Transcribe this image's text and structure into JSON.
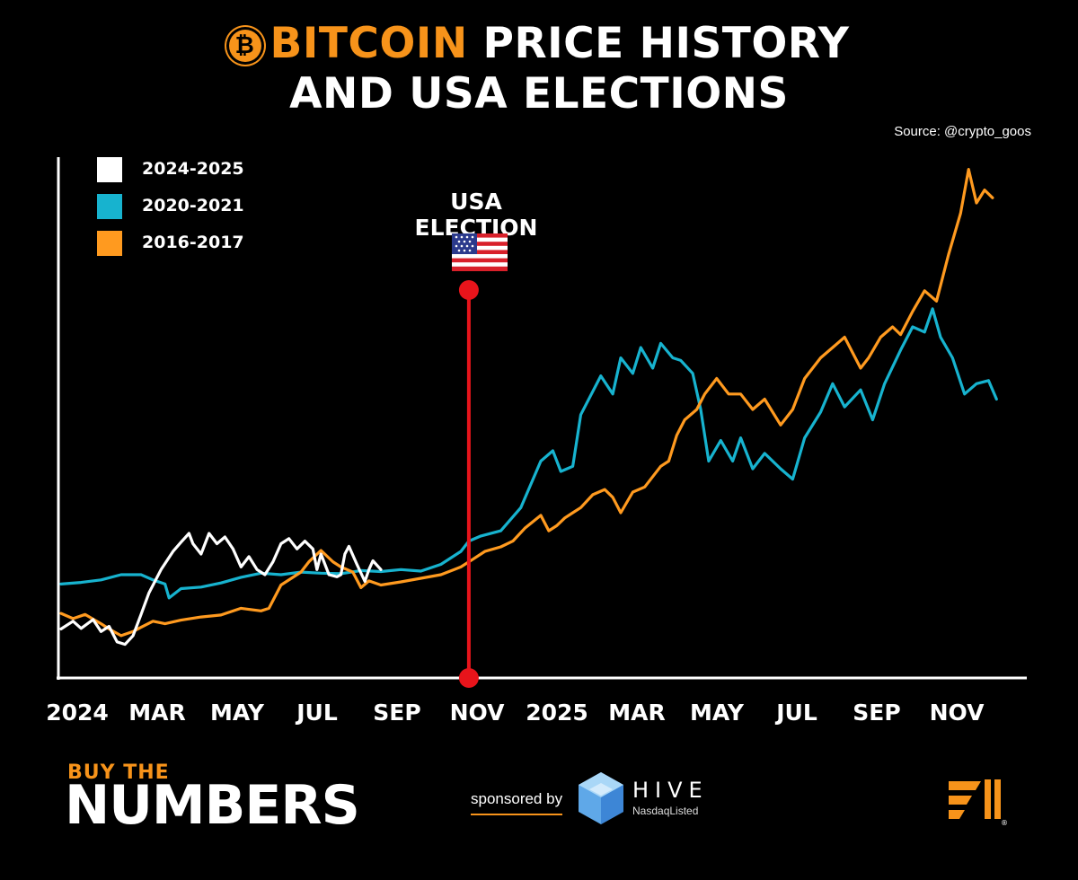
{
  "header": {
    "title_accent": "BITCOIN",
    "title_rest": " PRICE HISTORY",
    "title_line2": "AND USA ELECTIONS",
    "source": "Source: @crypto_goos"
  },
  "colors": {
    "background": "#000000",
    "accent": "#F7931A",
    "series_2024": "#FFFFFF",
    "series_2020": "#17B3CF",
    "series_2016": "#FF9A1F",
    "election_line": "#E8141B"
  },
  "annotation": {
    "label": "USA ELECTION",
    "icon": "us-flag-icon"
  },
  "chart_data": {
    "type": "line",
    "title": "BITCOIN PRICE HISTORY AND USA ELECTIONS",
    "x_unit": "months since start of cycle (0 = Jan of election year)",
    "x_range": [
      0,
      24
    ],
    "xticks": [
      {
        "x": 0,
        "label": "2024"
      },
      {
        "x": 2,
        "label": "MAR"
      },
      {
        "x": 4,
        "label": "MAY"
      },
      {
        "x": 6,
        "label": "JUL"
      },
      {
        "x": 8,
        "label": "SEP"
      },
      {
        "x": 10,
        "label": "NOV"
      },
      {
        "x": 12,
        "label": "2025"
      },
      {
        "x": 14,
        "label": "MAR"
      },
      {
        "x": 16,
        "label": "MAY"
      },
      {
        "x": 18,
        "label": "JUL"
      },
      {
        "x": 20,
        "label": "SEP"
      },
      {
        "x": 22,
        "label": "NOV"
      }
    ],
    "y_unit": "relative price index (unlabeled axis)",
    "ylim": [
      0,
      100
    ],
    "grid": false,
    "legend_position": "top-left",
    "election_x": 10.2,
    "series": [
      {
        "name": "2024-2025",
        "points": [
          [
            0,
            9.5
          ],
          [
            0.3,
            11
          ],
          [
            0.5,
            9.6
          ],
          [
            0.8,
            11.3
          ],
          [
            1.0,
            9
          ],
          [
            1.2,
            10
          ],
          [
            1.4,
            7
          ],
          [
            1.6,
            6.5
          ],
          [
            1.8,
            8.2
          ],
          [
            2.0,
            12.3
          ],
          [
            2.2,
            16.5
          ],
          [
            2.5,
            21
          ],
          [
            2.8,
            24.5
          ],
          [
            3.0,
            26.3
          ],
          [
            3.2,
            28
          ],
          [
            3.3,
            26
          ],
          [
            3.5,
            24
          ],
          [
            3.7,
            28
          ],
          [
            3.9,
            26
          ],
          [
            4.1,
            27.3
          ],
          [
            4.3,
            25
          ],
          [
            4.5,
            21.5
          ],
          [
            4.7,
            23.5
          ],
          [
            4.9,
            21
          ],
          [
            5.1,
            20
          ],
          [
            5.3,
            22.5
          ],
          [
            5.5,
            26
          ],
          [
            5.7,
            27
          ],
          [
            5.9,
            25
          ],
          [
            6.1,
            26.5
          ],
          [
            6.3,
            25
          ],
          [
            6.4,
            21
          ],
          [
            6.5,
            24
          ],
          [
            6.7,
            20
          ],
          [
            6.9,
            19.6
          ],
          [
            7.0,
            20
          ],
          [
            7.1,
            24
          ],
          [
            7.2,
            25.5
          ],
          [
            7.4,
            22
          ],
          [
            7.6,
            18.7
          ],
          [
            7.7,
            21
          ],
          [
            7.8,
            22.7
          ],
          [
            8.0,
            21
          ]
        ]
      },
      {
        "name": "2020-2021",
        "points": [
          [
            0,
            18.2
          ],
          [
            0.5,
            18.5
          ],
          [
            1.0,
            19
          ],
          [
            1.5,
            20
          ],
          [
            2.0,
            20
          ],
          [
            2.3,
            19
          ],
          [
            2.6,
            18.2
          ],
          [
            2.7,
            15.5
          ],
          [
            3.0,
            17.3
          ],
          [
            3.5,
            17.6
          ],
          [
            4.0,
            18.4
          ],
          [
            4.5,
            19.5
          ],
          [
            5.0,
            20.3
          ],
          [
            5.5,
            20
          ],
          [
            6.0,
            20.5
          ],
          [
            6.5,
            20.3
          ],
          [
            7.0,
            20.2
          ],
          [
            7.5,
            20.8
          ],
          [
            8.0,
            20.6
          ],
          [
            8.5,
            21
          ],
          [
            9.0,
            20.7
          ],
          [
            9.5,
            22
          ],
          [
            10.0,
            24.5
          ],
          [
            10.2,
            26.5
          ],
          [
            10.5,
            27.5
          ],
          [
            11.0,
            28.5
          ],
          [
            11.5,
            33
          ],
          [
            12.0,
            42
          ],
          [
            12.3,
            44
          ],
          [
            12.5,
            40
          ],
          [
            12.8,
            41
          ],
          [
            13.0,
            51
          ],
          [
            13.5,
            58.5
          ],
          [
            13.8,
            55
          ],
          [
            14.0,
            62
          ],
          [
            14.3,
            59
          ],
          [
            14.5,
            64
          ],
          [
            14.8,
            60
          ],
          [
            15.0,
            64.8
          ],
          [
            15.3,
            62
          ],
          [
            15.5,
            61.5
          ],
          [
            15.8,
            59
          ],
          [
            16.0,
            52
          ],
          [
            16.2,
            42
          ],
          [
            16.5,
            46
          ],
          [
            16.8,
            42
          ],
          [
            17.0,
            46.5
          ],
          [
            17.3,
            40.5
          ],
          [
            17.6,
            43.5
          ],
          [
            18.0,
            40.5
          ],
          [
            18.3,
            38.5
          ],
          [
            18.6,
            46.5
          ],
          [
            19.0,
            51.5
          ],
          [
            19.3,
            57
          ],
          [
            19.6,
            52.5
          ],
          [
            20.0,
            55.8
          ],
          [
            20.3,
            50
          ],
          [
            20.6,
            57
          ],
          [
            21.0,
            63.5
          ],
          [
            21.3,
            68
          ],
          [
            21.6,
            67
          ],
          [
            21.8,
            71.5
          ],
          [
            22.0,
            66
          ],
          [
            22.3,
            62
          ],
          [
            22.6,
            55
          ],
          [
            22.9,
            57
          ],
          [
            23.2,
            57.6
          ],
          [
            23.4,
            54
          ]
        ]
      },
      {
        "name": "2016-2017",
        "points": [
          [
            0,
            12.5
          ],
          [
            0.3,
            11.5
          ],
          [
            0.6,
            12.3
          ],
          [
            1.0,
            10.5
          ],
          [
            1.2,
            9.5
          ],
          [
            1.5,
            8.2
          ],
          [
            1.8,
            9
          ],
          [
            2.0,
            9.8
          ],
          [
            2.3,
            11
          ],
          [
            2.6,
            10.5
          ],
          [
            3.0,
            11.2
          ],
          [
            3.5,
            11.8
          ],
          [
            4.0,
            12.2
          ],
          [
            4.5,
            13.5
          ],
          [
            5.0,
            13
          ],
          [
            5.2,
            13.5
          ],
          [
            5.5,
            18
          ],
          [
            5.8,
            19.5
          ],
          [
            6.0,
            20.5
          ],
          [
            6.2,
            22.5
          ],
          [
            6.5,
            24.7
          ],
          [
            6.8,
            22.5
          ],
          [
            7.0,
            21.5
          ],
          [
            7.3,
            20.5
          ],
          [
            7.5,
            17.5
          ],
          [
            7.7,
            18.8
          ],
          [
            8.0,
            18
          ],
          [
            8.5,
            18.6
          ],
          [
            9.0,
            19.3
          ],
          [
            9.5,
            20
          ],
          [
            10.0,
            21.5
          ],
          [
            10.3,
            23
          ],
          [
            10.6,
            24.5
          ],
          [
            11.0,
            25.4
          ],
          [
            11.3,
            26.5
          ],
          [
            11.6,
            29
          ],
          [
            12.0,
            31.5
          ],
          [
            12.2,
            28.5
          ],
          [
            12.4,
            29.5
          ],
          [
            12.6,
            31
          ],
          [
            12.8,
            32
          ],
          [
            13.0,
            33
          ],
          [
            13.3,
            35.5
          ],
          [
            13.6,
            36.5
          ],
          [
            13.8,
            35
          ],
          [
            14.0,
            32
          ],
          [
            14.3,
            36
          ],
          [
            14.6,
            37
          ],
          [
            15.0,
            41
          ],
          [
            15.2,
            42
          ],
          [
            15.4,
            47
          ],
          [
            15.6,
            50
          ],
          [
            15.9,
            52
          ],
          [
            16.1,
            55
          ],
          [
            16.4,
            58
          ],
          [
            16.7,
            55
          ],
          [
            17.0,
            55
          ],
          [
            17.3,
            52
          ],
          [
            17.6,
            54
          ],
          [
            18.0,
            49
          ],
          [
            18.3,
            52
          ],
          [
            18.6,
            58
          ],
          [
            19.0,
            62
          ],
          [
            19.3,
            64
          ],
          [
            19.6,
            66
          ],
          [
            20.0,
            60
          ],
          [
            20.2,
            62
          ],
          [
            20.5,
            66
          ],
          [
            20.8,
            68
          ],
          [
            21.0,
            66.5
          ],
          [
            21.3,
            71
          ],
          [
            21.6,
            75
          ],
          [
            21.9,
            73
          ],
          [
            22.2,
            82
          ],
          [
            22.5,
            90
          ],
          [
            22.7,
            98.5
          ],
          [
            22.9,
            92
          ],
          [
            23.1,
            94.5
          ],
          [
            23.3,
            93
          ]
        ]
      }
    ]
  },
  "footer": {
    "brand_small": "BUY THE",
    "brand_big": "NUMBERS",
    "sponsored_by": "sponsored by",
    "sponsor_name": "HIVE",
    "sponsor_sub": "NasdaqListed"
  }
}
